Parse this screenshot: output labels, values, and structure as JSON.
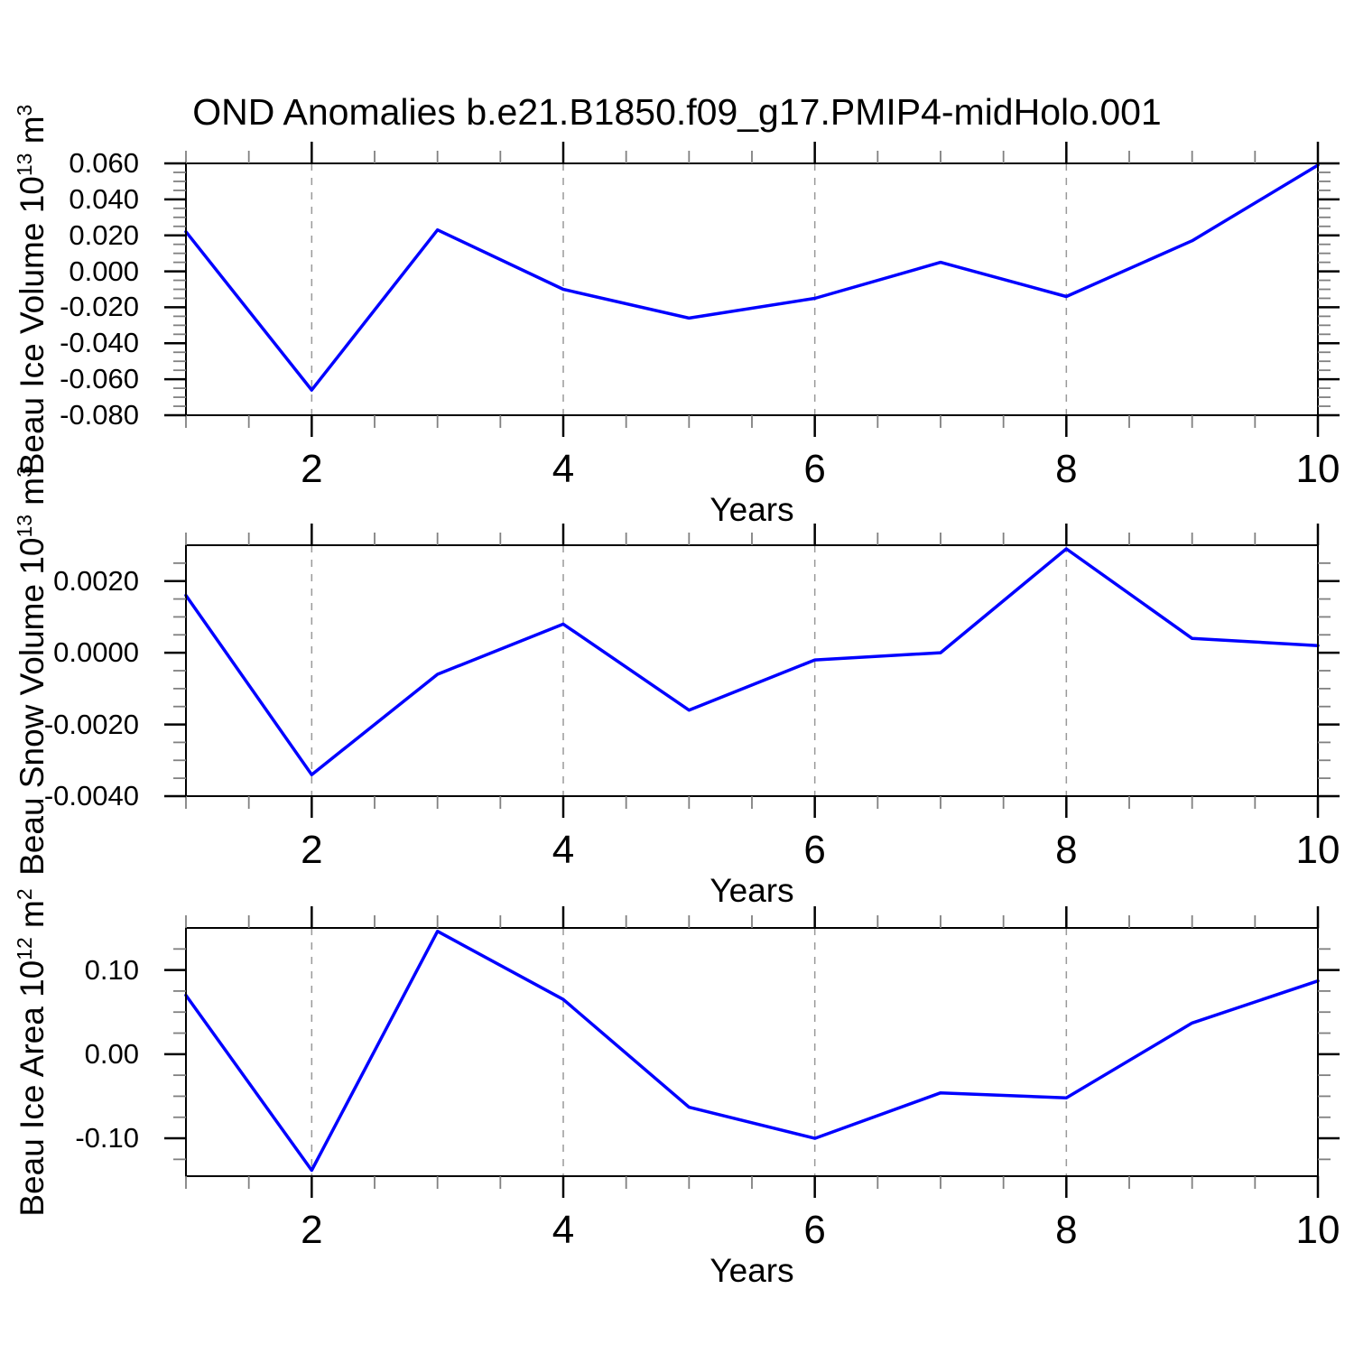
{
  "title": "OND Anomalies b.e21.B1850.f09_g17.PMIP4-midHolo.001",
  "colors": {
    "line": "#0000ff",
    "grid": "#9a9a9a",
    "frame": "#000000",
    "major_tick": "#000000",
    "minor_tick": "#808080",
    "text": "#000000",
    "background": "#ffffff"
  },
  "chart_data": [
    {
      "type": "line",
      "name": "beau-ice-volume",
      "title": "",
      "xlabel": "Years",
      "ylabel": "Beau Ice Volume 10^13 m^3",
      "ylabel_parts": [
        [
          "Beau Ice Volume 10",
          false
        ],
        [
          "13",
          true
        ],
        [
          " m",
          false
        ],
        [
          "3",
          true
        ]
      ],
      "x": [
        1,
        2,
        3,
        4,
        5,
        6,
        7,
        8,
        9,
        10
      ],
      "values": [
        0.022,
        -0.066,
        0.023,
        -0.01,
        -0.026,
        -0.015,
        0.005,
        -0.014,
        0.017,
        0.059
      ],
      "xlim": [
        1,
        10
      ],
      "ylim": [
        -0.08,
        0.06
      ],
      "xticks": [
        {
          "v": 2,
          "label": "2"
        },
        {
          "v": 4,
          "label": "4"
        },
        {
          "v": 6,
          "label": "6"
        },
        {
          "v": 8,
          "label": "8"
        },
        {
          "v": 10,
          "label": "10"
        }
      ],
      "x_minor_step": 0.5,
      "yticks": [
        {
          "v": 0.06,
          "label": "0.060"
        },
        {
          "v": 0.04,
          "label": "0.040"
        },
        {
          "v": 0.02,
          "label": "0.020"
        },
        {
          "v": 0.0,
          "label": "0.000"
        },
        {
          "v": -0.02,
          "label": "-0.020"
        },
        {
          "v": -0.04,
          "label": "-0.040"
        },
        {
          "v": -0.06,
          "label": "-0.060"
        },
        {
          "v": -0.08,
          "label": "-0.080"
        }
      ],
      "y_minor_step": 0.005,
      "grid_x": [
        2,
        4,
        6,
        8
      ],
      "grid_style": "dashed",
      "legend": "none"
    },
    {
      "type": "line",
      "name": "beau-snow-volume",
      "title": "",
      "xlabel": "Years",
      "ylabel": "Beau Snow Volume 10^13 m^3",
      "ylabel_parts": [
        [
          "Beau Snow Volume 10",
          false
        ],
        [
          "13",
          true
        ],
        [
          " m",
          false
        ],
        [
          "3",
          true
        ]
      ],
      "x": [
        1,
        2,
        3,
        4,
        5,
        6,
        7,
        8,
        9,
        10
      ],
      "values": [
        0.0016,
        -0.0034,
        -0.0006,
        0.0008,
        -0.0016,
        -0.0002,
        0.0,
        0.0029,
        0.0004,
        0.0002
      ],
      "xlim": [
        1,
        10
      ],
      "ylim": [
        -0.004,
        0.003
      ],
      "xticks": [
        {
          "v": 2,
          "label": "2"
        },
        {
          "v": 4,
          "label": "4"
        },
        {
          "v": 6,
          "label": "6"
        },
        {
          "v": 8,
          "label": "8"
        },
        {
          "v": 10,
          "label": "10"
        }
      ],
      "x_minor_step": 0.5,
      "yticks": [
        {
          "v": 0.002,
          "label": "0.0020"
        },
        {
          "v": 0.0,
          "label": "0.0000"
        },
        {
          "v": -0.002,
          "label": "-0.0020"
        },
        {
          "v": -0.004,
          "label": "-0.0040"
        }
      ],
      "y_minor_step": 0.0005,
      "grid_x": [
        2,
        4,
        6,
        8
      ],
      "grid_style": "dashed",
      "legend": "none"
    },
    {
      "type": "line",
      "name": "beau-ice-area",
      "title": "",
      "xlabel": "Years",
      "ylabel": "Beau Ice Area 10^12 m^2",
      "ylabel_parts": [
        [
          "Beau Ice Area 10",
          false
        ],
        [
          "12",
          true
        ],
        [
          " m",
          false
        ],
        [
          "2",
          true
        ]
      ],
      "x": [
        1,
        2,
        3,
        4,
        5,
        6,
        7,
        8,
        9,
        10
      ],
      "values": [
        0.07,
        -0.138,
        0.146,
        0.065,
        -0.063,
        -0.1,
        -0.046,
        -0.052,
        0.037,
        0.087
      ],
      "xlim": [
        1,
        10
      ],
      "ylim": [
        -0.145,
        0.15
      ],
      "xticks": [
        {
          "v": 2,
          "label": "2"
        },
        {
          "v": 4,
          "label": "4"
        },
        {
          "v": 6,
          "label": "6"
        },
        {
          "v": 8,
          "label": "8"
        },
        {
          "v": 10,
          "label": "10"
        }
      ],
      "x_minor_step": 0.5,
      "yticks": [
        {
          "v": 0.1,
          "label": "0.10"
        },
        {
          "v": 0.0,
          "label": "0.00"
        },
        {
          "v": -0.1,
          "label": "-0.10"
        }
      ],
      "y_minor_step": 0.025,
      "grid_x": [
        2,
        4,
        6,
        8
      ],
      "grid_style": "dashed",
      "legend": "none"
    }
  ]
}
